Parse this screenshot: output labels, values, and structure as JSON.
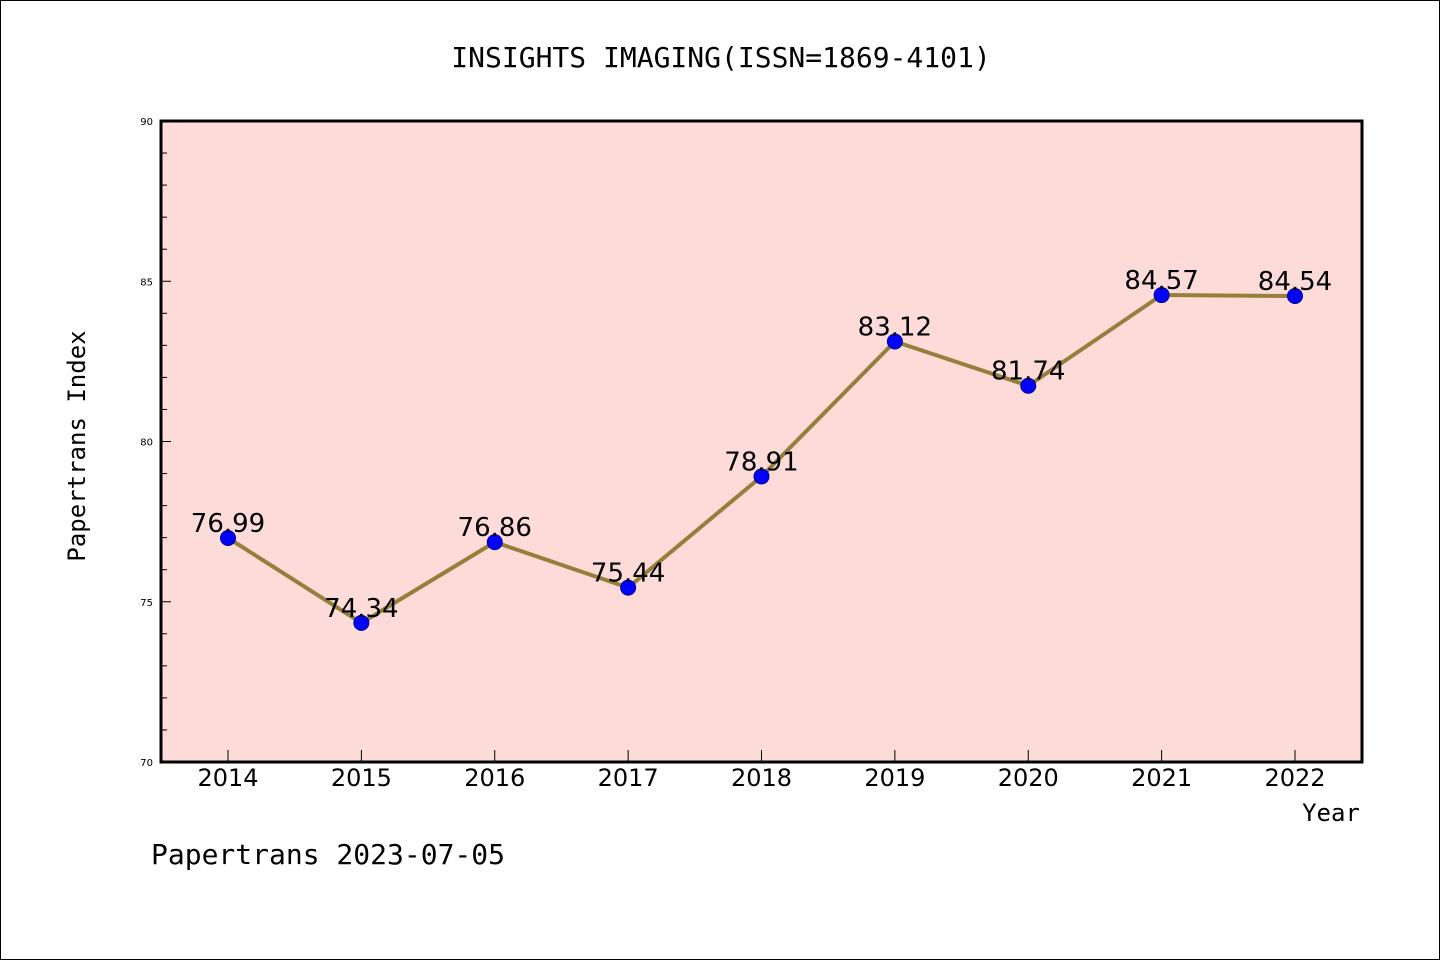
{
  "title": "INSIGHTS IMAGING(ISSN=1869-4101)",
  "footer": "Papertrans 2023-07-05",
  "colors": {
    "plot_background": "#fddbd8",
    "line": "#94803a",
    "marker": "#0000ff",
    "marker_edge": "#00008b"
  },
  "chart_data": {
    "type": "line",
    "title": "INSIGHTS IMAGING(ISSN=1869-4101)",
    "xlabel": "Year",
    "ylabel": "Papertrans Index",
    "x": [
      "2014",
      "2015",
      "2016",
      "2017",
      "2018",
      "2019",
      "2020",
      "2021",
      "2022"
    ],
    "values": [
      76.99,
      74.34,
      76.86,
      75.44,
      78.91,
      83.12,
      81.74,
      84.57,
      84.54
    ],
    "data_labels": [
      "76.99",
      "74.34",
      "76.86",
      "75.44",
      "78.91",
      "83.12",
      "81.74",
      "84.57",
      "84.54"
    ],
    "ylim": [
      70,
      90
    ],
    "yticks": [
      "70",
      "75",
      "80",
      "85",
      "90"
    ],
    "grid": false,
    "legend": "none"
  }
}
